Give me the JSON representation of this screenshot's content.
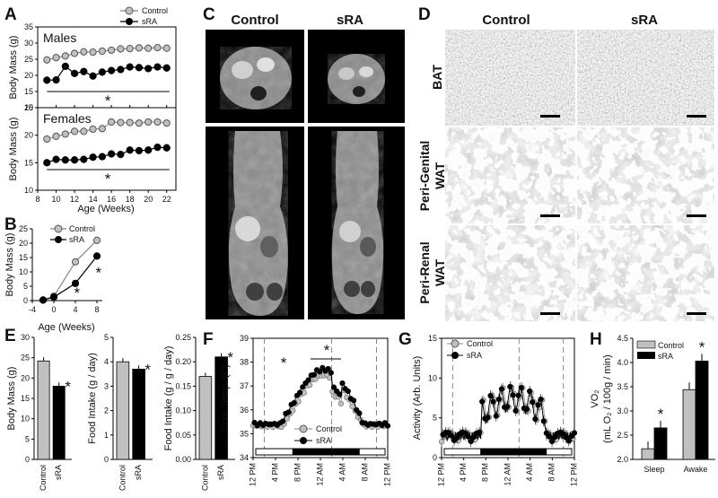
{
  "panel_letters": [
    "A",
    "B",
    "C",
    "D",
    "E",
    "F",
    "G",
    "H"
  ],
  "control_label": "Control",
  "sra_label": "sRA",
  "star": "*",
  "colors": {
    "control": "#b0b0b0",
    "sra": "#000000",
    "control_fill": "#c0c0c0",
    "sra_fill": "#000000"
  },
  "mri": {
    "col_control": "Control",
    "col_sra": "sRA"
  },
  "histology": {
    "col_control": "Control",
    "col_sra": "sRA",
    "rows": [
      "BAT",
      "Peri-Genital\nWAT",
      "Peri-Renal\nWAT"
    ]
  },
  "chart_data": [
    {
      "id": "A-males",
      "type": "line",
      "title": "Males",
      "ylabel": "Body Mass (g)",
      "ylim": [
        10,
        35
      ],
      "yticks": [
        10,
        15,
        20,
        25,
        30,
        35
      ],
      "x": [
        9,
        10,
        11,
        12,
        13,
        14,
        15,
        16,
        17,
        18,
        19,
        20,
        21,
        22
      ],
      "xlim": [
        8,
        23
      ],
      "series": [
        {
          "name": "Control",
          "values": [
            24.8,
            25.5,
            26,
            26.8,
            27.3,
            27.2,
            27.5,
            27.8,
            28.2,
            28.3,
            28.5,
            28.4,
            28.6,
            28.4
          ]
        },
        {
          "name": "sRA",
          "values": [
            18.5,
            18.6,
            22.8,
            20.6,
            21.2,
            19.8,
            21,
            21.5,
            21.8,
            22.6,
            22.4,
            22.1,
            22.6,
            22.3
          ]
        }
      ],
      "annotations": [
        "*"
      ]
    },
    {
      "id": "A-females",
      "type": "line",
      "title": "Females",
      "ylabel": "Body Mass (g)",
      "xlabel": "Age (Weeks)",
      "ylim": [
        10,
        25
      ],
      "yticks": [
        10,
        15,
        20,
        25
      ],
      "x": [
        9,
        10,
        11,
        12,
        13,
        14,
        15,
        16,
        17,
        18,
        19,
        20,
        21,
        22
      ],
      "xlim": [
        8,
        23
      ],
      "xticks": [
        8,
        10,
        12,
        14,
        16,
        18,
        20,
        22
      ],
      "series": [
        {
          "name": "Control",
          "values": [
            19.3,
            19.8,
            20.2,
            20.7,
            20.7,
            21.1,
            21.2,
            22.4,
            22.3,
            22.3,
            22.2,
            22.4,
            22.4,
            22.2
          ]
        },
        {
          "name": "sRA",
          "values": [
            15,
            15.6,
            15.5,
            15.5,
            15.6,
            16,
            16.1,
            16.6,
            16.5,
            17.3,
            17.2,
            17.3,
            17.8,
            17.7
          ]
        }
      ],
      "annotations": [
        "*"
      ]
    },
    {
      "id": "B",
      "type": "line",
      "ylabel": "Body Mass (g)",
      "xlabel": "Age (Weeks)",
      "ylim": [
        0,
        25
      ],
      "yticks": [
        0,
        5,
        10,
        15,
        20,
        25
      ],
      "xlim": [
        -4,
        9
      ],
      "xticks": [
        -4,
        0,
        4,
        8
      ],
      "x": [
        -2,
        0,
        4,
        8
      ],
      "series": [
        {
          "name": "Control",
          "values": [
            0.2,
            1.5,
            13.5,
            21
          ]
        },
        {
          "name": "sRA",
          "values": [
            0.2,
            1.2,
            6,
            15.5
          ]
        }
      ],
      "annotations": [
        "*",
        "*"
      ]
    },
    {
      "id": "E1",
      "type": "bar",
      "ylabel": "Body Mass (g)",
      "ylim": [
        0,
        30
      ],
      "yticks": [
        0,
        5,
        10,
        15,
        20,
        25,
        30
      ],
      "categories": [
        "Control",
        "sRA"
      ],
      "values": [
        24.2,
        18
      ]
    },
    {
      "id": "E2",
      "type": "bar",
      "ylabel": "Food Intake (g / day)",
      "ylim": [
        0,
        5
      ],
      "yticks": [
        0,
        1,
        2,
        3,
        4,
        5
      ],
      "categories": [
        "Control",
        "sRA"
      ],
      "values": [
        4.0,
        3.7
      ]
    },
    {
      "id": "E3",
      "type": "bar",
      "ylabel": "Food Intake (g / g / day)",
      "ylim": [
        0,
        0.25
      ],
      "yticks": [
        "0.00",
        "0.05",
        "0.10",
        "0.15",
        "0.20",
        "0.25"
      ],
      "categories": [
        "Control",
        "sRA"
      ],
      "values": [
        0.17,
        0.21
      ]
    },
    {
      "id": "F",
      "type": "line",
      "ylabel": "Core Temp. (C)",
      "ylim": [
        34,
        39
      ],
      "yticks": [
        34,
        35,
        36,
        37,
        38,
        39
      ],
      "xticks": [
        "12 PM",
        "4 PM",
        "8 PM",
        "12 AM",
        "4 AM",
        "8 AM",
        "12 PM"
      ],
      "series": [
        {
          "name": "Control"
        },
        {
          "name": "sRA"
        }
      ],
      "annotations": [
        "*",
        "*"
      ]
    },
    {
      "id": "G",
      "type": "line",
      "ylabel": "Activity (Arb. Units)",
      "ylim": [
        0,
        15
      ],
      "yticks": [
        0,
        5,
        10,
        15
      ],
      "xticks": [
        "12 PM",
        "4 PM",
        "8 PM",
        "12 AM",
        "4 AM",
        "8 AM",
        "12 PM"
      ],
      "series": [
        {
          "name": "Control"
        },
        {
          "name": "sRA"
        }
      ]
    },
    {
      "id": "H",
      "type": "bar",
      "ylabel": "VO₂",
      "ylabel2": "(mL O₂ / 100g / min)",
      "ylim": [
        2,
        4.5
      ],
      "yticks": [
        "2.0",
        "2.5",
        "3.0",
        "3.5",
        "4.0",
        "4.5"
      ],
      "categories": [
        "Sleep",
        "Awake"
      ],
      "series": [
        {
          "name": "Control",
          "values": [
            2.22,
            3.44
          ]
        },
        {
          "name": "sRA",
          "values": [
            2.65,
            4.03
          ]
        }
      ],
      "annotations": [
        "*",
        "*"
      ]
    }
  ]
}
